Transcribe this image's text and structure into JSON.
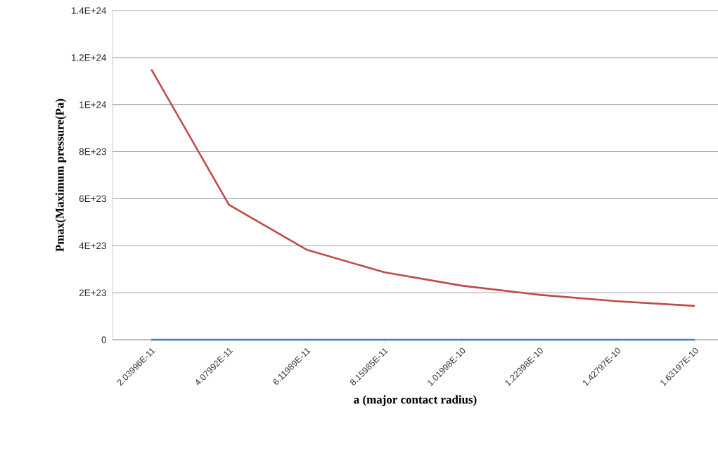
{
  "chart_data": {
    "type": "line",
    "xlabel": "a (major contact radius)",
    "ylabel": "Pmax(Maximum pressure(Pa)",
    "categories": [
      "2.03996E-11",
      "4.07992E-11",
      "6.11989E-11",
      "8.15985E-11",
      "1.01998E-10",
      "1.22398E-10",
      "1.42797E-10",
      "1.63197E-10"
    ],
    "series": [
      {
        "color": "#be4b48",
        "values": [
          1.15e+24,
          5.74e+23,
          3.83e+23,
          2.87e+23,
          2.3e+23,
          1.91e+23,
          1.64e+23,
          1.44e+23
        ]
      },
      {
        "color": "#4a7ebb",
        "values": [
          0,
          0,
          0,
          0,
          0,
          0,
          0,
          0
        ]
      }
    ],
    "ylim": [
      0,
      1.4e+24
    ],
    "yticks": [
      0,
      {
        "value": 2e+23,
        "label": "2E+23"
      },
      {
        "value": 4e+23,
        "label": "4E+23"
      },
      {
        "value": 6e+23,
        "label": "6E+23"
      },
      {
        "value": 8e+23,
        "label": "8E+23"
      },
      {
        "value": 1e+24,
        "label": "1E+24"
      },
      {
        "value": 1.2e+24,
        "label": "1.2E+24"
      },
      {
        "value": 1.4e+24,
        "label": "1.4E+24"
      }
    ],
    "grid": "y",
    "marker": "none",
    "line_style": "solid"
  }
}
